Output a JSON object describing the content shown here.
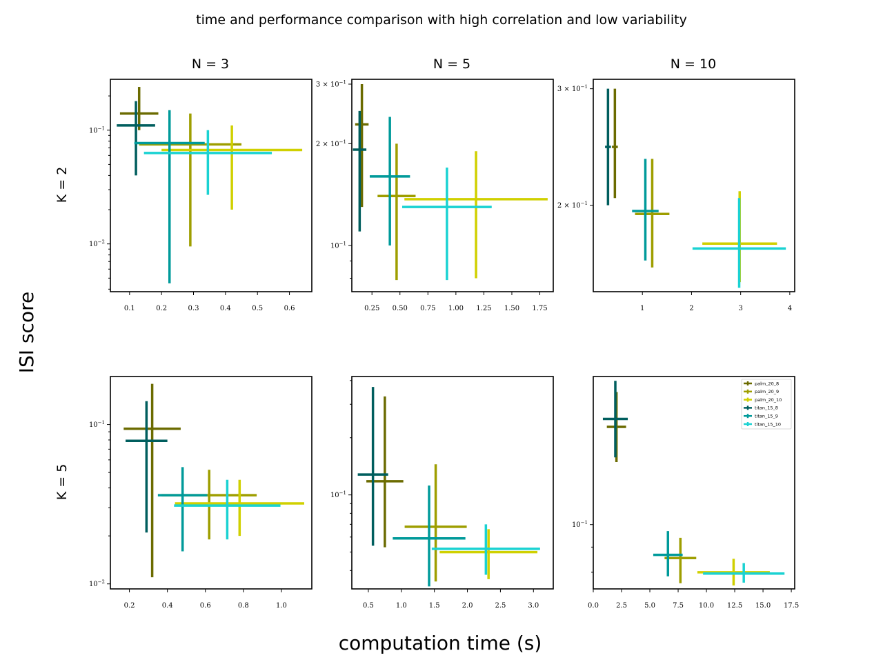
{
  "figure": {
    "title": "time and performance comparison with high correlation and low variability",
    "xlabel": "computation time (s)",
    "ylabel": "ISI score"
  },
  "chart_data": [
    {
      "type": "errorbar",
      "col_title": "N = 3",
      "row_label": "K = 2",
      "yscale": "log",
      "xlim": [
        0.04,
        0.67
      ],
      "ylim": [
        0.0038,
        0.28
      ],
      "xticks": [
        0.1,
        0.2,
        0.3,
        0.4,
        0.5,
        0.6
      ],
      "xtick_labels": [
        "0.1",
        "0.2",
        "0.3",
        "0.4",
        "0.5",
        "0.6"
      ],
      "yticks": [
        0.1,
        0.01
      ],
      "ytick_labels": [
        "10^-1",
        "10^-2"
      ],
      "series": [
        {
          "name": "palm_20_8",
          "x": 0.13,
          "y": 0.14,
          "xerr": [
            0.06,
            0.06
          ],
          "yerr": [
            0.1,
            0.24
          ]
        },
        {
          "name": "palm_20_9",
          "x": 0.29,
          "y": 0.075,
          "xerr": [
            0.16,
            0.16
          ],
          "yerr": [
            0.0095,
            0.14
          ]
        },
        {
          "name": "palm_20_10",
          "x": 0.42,
          "y": 0.067,
          "xerr": [
            0.22,
            0.22
          ],
          "yerr": [
            0.02,
            0.11
          ]
        },
        {
          "name": "titan_15_8",
          "x": 0.12,
          "y": 0.11,
          "xerr": [
            0.06,
            0.06
          ],
          "yerr": [
            0.04,
            0.18
          ]
        },
        {
          "name": "titan_15_9",
          "x": 0.225,
          "y": 0.077,
          "xerr": [
            0.11,
            0.11
          ],
          "yerr": [
            0.0045,
            0.15
          ]
        },
        {
          "name": "titan_15_10",
          "x": 0.345,
          "y": 0.063,
          "xerr": [
            0.2,
            0.2
          ],
          "yerr": [
            0.027,
            0.1
          ]
        }
      ]
    },
    {
      "type": "errorbar",
      "col_title": "N = 5",
      "row_label": "",
      "yscale": "log",
      "xlim": [
        0.07,
        1.87
      ],
      "ylim": [
        0.073,
        0.31
      ],
      "xticks": [
        0.25,
        0.5,
        0.75,
        1.0,
        1.25,
        1.5,
        1.75
      ],
      "xtick_labels": [
        "0.25",
        "0.50",
        "0.75",
        "1.00",
        "1.25",
        "1.50",
        "1.75"
      ],
      "yticks": [
        0.3,
        0.2,
        0.1
      ],
      "ytick_labels": [
        "3 × 10^-1",
        "2 × 10^-1",
        "10^-1"
      ],
      "series": [
        {
          "name": "palm_20_8",
          "x": 0.16,
          "y": 0.228,
          "xerr": [
            0.06,
            0.06
          ],
          "yerr": [
            0.13,
            0.3
          ]
        },
        {
          "name": "palm_20_9",
          "x": 0.47,
          "y": 0.14,
          "xerr": [
            0.17,
            0.17
          ],
          "yerr": [
            0.079,
            0.2
          ]
        },
        {
          "name": "palm_20_10",
          "x": 1.18,
          "y": 0.137,
          "xerr": [
            0.64,
            0.64
          ],
          "yerr": [
            0.08,
            0.19
          ]
        },
        {
          "name": "titan_15_8",
          "x": 0.14,
          "y": 0.192,
          "xerr": [
            0.06,
            0.06
          ],
          "yerr": [
            0.11,
            0.25
          ]
        },
        {
          "name": "titan_15_9",
          "x": 0.41,
          "y": 0.16,
          "xerr": [
            0.18,
            0.18
          ],
          "yerr": [
            0.1,
            0.24
          ]
        },
        {
          "name": "titan_15_10",
          "x": 0.92,
          "y": 0.13,
          "xerr": [
            0.4,
            0.4
          ],
          "yerr": [
            0.079,
            0.17
          ]
        }
      ]
    },
    {
      "type": "errorbar",
      "col_title": "N = 10",
      "row_label": "",
      "yscale": "log",
      "xlim": [
        0.0,
        4.1
      ],
      "ylim": [
        0.148,
        0.31
      ],
      "xticks": [
        1,
        2,
        3,
        4
      ],
      "xtick_labels": [
        "1",
        "2",
        "3",
        "4"
      ],
      "yticks": [
        0.3,
        0.2
      ],
      "ytick_labels": [
        "3 × 10^-1",
        "2 × 10^-1"
      ],
      "series": [
        {
          "name": "palm_20_8",
          "x": 0.44,
          "y": 0.245,
          "xerr": [
            0.06,
            0.06
          ],
          "yerr": [
            0.205,
            0.3
          ]
        },
        {
          "name": "palm_20_9",
          "x": 1.2,
          "y": 0.194,
          "xerr": [
            0.35,
            0.35
          ],
          "yerr": [
            0.161,
            0.235
          ]
        },
        {
          "name": "palm_20_10",
          "x": 2.98,
          "y": 0.175,
          "xerr": [
            0.76,
            0.76
          ],
          "yerr": [
            0.153,
            0.21
          ]
        },
        {
          "name": "titan_15_8",
          "x": 0.3,
          "y": 0.245,
          "xerr": [
            0.06,
            0.06
          ],
          "yerr": [
            0.2,
            0.3
          ]
        },
        {
          "name": "titan_15_9",
          "x": 1.06,
          "y": 0.196,
          "xerr": [
            0.27,
            0.27
          ],
          "yerr": [
            0.165,
            0.235
          ]
        },
        {
          "name": "titan_15_10",
          "x": 2.97,
          "y": 0.172,
          "xerr": [
            0.95,
            0.95
          ],
          "yerr": [
            0.15,
            0.205
          ]
        }
      ]
    },
    {
      "type": "errorbar",
      "col_title": "",
      "row_label": "K = 5",
      "yscale": "log",
      "xlim": [
        0.1,
        1.16
      ],
      "ylim": [
        0.0093,
        0.2
      ],
      "xticks": [
        0.2,
        0.4,
        0.6,
        0.8,
        1.0
      ],
      "xtick_labels": [
        "0.2",
        "0.4",
        "0.6",
        "0.8",
        "1.0"
      ],
      "yticks": [
        0.1,
        0.01
      ],
      "ytick_labels": [
        "10^-1",
        "10^-2"
      ],
      "series": [
        {
          "name": "palm_20_8",
          "x": 0.32,
          "y": 0.094,
          "xerr": [
            0.15,
            0.15
          ],
          "yerr": [
            0.011,
            0.18
          ]
        },
        {
          "name": "palm_20_9",
          "x": 0.62,
          "y": 0.036,
          "xerr": [
            0.25,
            0.25
          ],
          "yerr": [
            0.019,
            0.052
          ]
        },
        {
          "name": "palm_20_10",
          "x": 0.78,
          "y": 0.032,
          "xerr": [
            0.34,
            0.34
          ],
          "yerr": [
            0.02,
            0.045
          ]
        },
        {
          "name": "titan_15_8",
          "x": 0.29,
          "y": 0.079,
          "xerr": [
            0.11,
            0.11
          ],
          "yerr": [
            0.021,
            0.14
          ]
        },
        {
          "name": "titan_15_9",
          "x": 0.48,
          "y": 0.036,
          "xerr": [
            0.13,
            0.13
          ],
          "yerr": [
            0.016,
            0.054
          ]
        },
        {
          "name": "titan_15_10",
          "x": 0.715,
          "y": 0.031,
          "xerr": [
            0.28,
            0.28
          ],
          "yerr": [
            0.019,
            0.045
          ]
        }
      ]
    },
    {
      "type": "errorbar",
      "col_title": "",
      "row_label": "",
      "yscale": "log",
      "xlim": [
        0.25,
        3.3
      ],
      "ylim": [
        0.032,
        0.42
      ],
      "xticks": [
        0.5,
        1.0,
        1.5,
        2.0,
        2.5,
        3.0
      ],
      "xtick_labels": [
        "0.5",
        "1.0",
        "1.5",
        "2.0",
        "2.5",
        "3.0"
      ],
      "yticks": [
        0.1
      ],
      "ytick_labels": [
        "10^-1"
      ],
      "series": [
        {
          "name": "palm_20_8",
          "x": 0.75,
          "y": 0.118,
          "xerr": [
            0.28,
            0.28
          ],
          "yerr": [
            0.053,
            0.33
          ]
        },
        {
          "name": "palm_20_9",
          "x": 1.52,
          "y": 0.068,
          "xerr": [
            0.47,
            0.47
          ],
          "yerr": [
            0.035,
            0.145
          ]
        },
        {
          "name": "palm_20_10",
          "x": 2.32,
          "y": 0.05,
          "xerr": [
            0.74,
            0.74
          ],
          "yerr": [
            0.036,
            0.066
          ]
        },
        {
          "name": "titan_15_8",
          "x": 0.57,
          "y": 0.128,
          "xerr": [
            0.23,
            0.23
          ],
          "yerr": [
            0.054,
            0.37
          ]
        },
        {
          "name": "titan_15_9",
          "x": 1.42,
          "y": 0.059,
          "xerr": [
            0.55,
            0.55
          ],
          "yerr": [
            0.033,
            0.112
          ]
        },
        {
          "name": "titan_15_10",
          "x": 2.28,
          "y": 0.052,
          "xerr": [
            0.82,
            0.82
          ],
          "yerr": [
            0.038,
            0.07
          ]
        }
      ]
    },
    {
      "type": "errorbar",
      "col_title": "",
      "row_label": "",
      "yscale": "log",
      "xlim": [
        0.0,
        17.8
      ],
      "ylim": [
        0.074,
        0.2
      ],
      "xticks": [
        0,
        2.5,
        5,
        7.5,
        10,
        12.5,
        15,
        17.5
      ],
      "xtick_labels": [
        "0.0",
        "2.5",
        "5.0",
        "7.5",
        "10.0",
        "12.5",
        "15.0",
        "17.5"
      ],
      "yticks": [
        0.1
      ],
      "ytick_labels": [
        "10^-1"
      ],
      "legend": {
        "position": "upper right"
      },
      "series": [
        {
          "name": "palm_20_8",
          "x": 2.05,
          "y": 0.158,
          "xerr": [
            0.85,
            0.85
          ],
          "yerr": [
            0.134,
            0.186
          ]
        },
        {
          "name": "palm_20_9",
          "x": 7.7,
          "y": 0.0855,
          "xerr": [
            1.4,
            1.4
          ],
          "yerr": [
            0.076,
            0.094
          ]
        },
        {
          "name": "palm_20_10",
          "x": 12.4,
          "y": 0.08,
          "xerr": [
            3.2,
            3.2
          ],
          "yerr": [
            0.0752,
            0.0852
          ]
        },
        {
          "name": "titan_15_8",
          "x": 1.95,
          "y": 0.164,
          "xerr": [
            1.1,
            1.1
          ],
          "yerr": [
            0.137,
            0.196
          ]
        },
        {
          "name": "titan_15_9",
          "x": 6.6,
          "y": 0.0868,
          "xerr": [
            1.3,
            1.3
          ],
          "yerr": [
            0.0785,
            0.097
          ]
        },
        {
          "name": "titan_15_10",
          "x": 13.3,
          "y": 0.0795,
          "xerr": [
            3.6,
            3.6
          ],
          "yerr": [
            0.0762,
            0.0835
          ]
        }
      ]
    }
  ],
  "legend_entries": [
    "palm_20_8",
    "palm_20_9",
    "palm_20_10",
    "titan_15_8",
    "titan_15_9",
    "titan_15_10"
  ],
  "colors": {
    "palm_20_8": "#6b6b00",
    "palm_20_9": "#9e9e00",
    "palm_20_10": "#d0d000",
    "titan_15_8": "#005e5e",
    "titan_15_9": "#009a9a",
    "titan_15_10": "#1ad2d2"
  }
}
